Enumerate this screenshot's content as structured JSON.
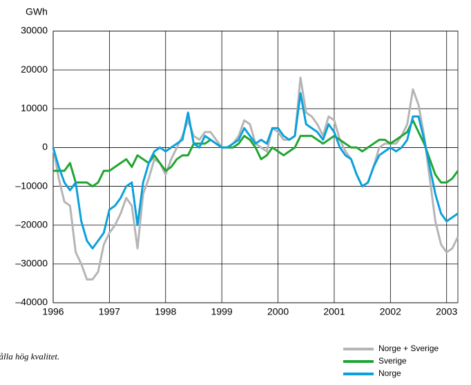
{
  "chart_data": {
    "type": "line",
    "y_label": "GWh",
    "caption": "uålla hög kvalitet.",
    "xlim": [
      1996,
      2003.2
    ],
    "xticks": [
      1996,
      1997,
      1998,
      1999,
      2000,
      2001,
      2002,
      2003
    ],
    "ylim": [
      -40000,
      30000
    ],
    "yticks": [
      {
        "value": -40000,
        "label": "–40000"
      },
      {
        "value": -30000,
        "label": "–30000"
      },
      {
        "value": -20000,
        "label": "–20000"
      },
      {
        "value": -10000,
        "label": "–10000"
      },
      0,
      10000,
      20000,
      30000
    ],
    "grid": true,
    "legend": "bottom-right",
    "x": [
      1996.0,
      1996.1,
      1996.2,
      1996.3,
      1996.4,
      1996.5,
      1996.6,
      1996.7,
      1996.8,
      1996.9,
      1997.0,
      1997.1,
      1997.2,
      1997.3,
      1997.4,
      1997.5,
      1997.6,
      1997.7,
      1997.8,
      1997.9,
      1998.0,
      1998.1,
      1998.2,
      1998.3,
      1998.4,
      1998.5,
      1998.6,
      1998.7,
      1998.8,
      1998.9,
      1999.0,
      1999.1,
      1999.2,
      1999.3,
      1999.4,
      1999.5,
      1999.6,
      1999.7,
      1999.8,
      1999.9,
      2000.0,
      2000.1,
      2000.2,
      2000.3,
      2000.4,
      2000.5,
      2000.6,
      2000.7,
      2000.8,
      2000.9,
      2001.0,
      2001.1,
      2001.2,
      2001.3,
      2001.4,
      2001.5,
      2001.6,
      2001.7,
      2001.8,
      2001.9,
      2002.0,
      2002.1,
      2002.2,
      2002.3,
      2002.4,
      2002.5,
      2002.6,
      2002.7,
      2002.8,
      2002.9,
      2003.0,
      2003.1,
      2003.2
    ],
    "series": [
      {
        "name": "Norge + Sverige",
        "color": "#b5b5b5",
        "values": [
          0,
          -8000,
          -14000,
          -15000,
          -27000,
          -30000,
          -34000,
          -34000,
          -32000,
          -25000,
          -22000,
          -20000,
          -17000,
          -13000,
          -15000,
          -26000,
          -12000,
          -8000,
          -3000,
          -4000,
          -7000,
          -3000,
          0,
          3000,
          7000,
          3000,
          2000,
          4000,
          4000,
          2000,
          0,
          0,
          1000,
          3000,
          7000,
          6000,
          1000,
          0,
          -1000,
          5000,
          4000,
          2000,
          2000,
          3000,
          18000,
          9000,
          8000,
          6000,
          3000,
          8000,
          7000,
          2000,
          -1000,
          -3000,
          -7000,
          -10000,
          -9000,
          -5000,
          0,
          1000,
          1000,
          1000,
          3000,
          6000,
          15000,
          11000,
          3000,
          -8000,
          -19000,
          -25000,
          -27000,
          -26000,
          -23000
        ]
      },
      {
        "name": "Sverige",
        "color": "#1fa531",
        "values": [
          -6000,
          -6000,
          -6000,
          -4000,
          -9000,
          -9000,
          -9000,
          -10000,
          -9000,
          -6000,
          -6000,
          -5000,
          -4000,
          -3000,
          -5000,
          -2000,
          -3000,
          -4000,
          -2000,
          -4000,
          -6000,
          -5000,
          -3000,
          -2000,
          -2000,
          1000,
          1000,
          1000,
          2000,
          1000,
          0,
          0,
          0,
          1000,
          3000,
          2000,
          0,
          -3000,
          -2000,
          0,
          -1000,
          -2000,
          -1000,
          0,
          3000,
          3000,
          3000,
          2000,
          1000,
          2000,
          3000,
          2000,
          1000,
          0,
          0,
          -1000,
          0,
          1000,
          2000,
          2000,
          1000,
          2000,
          3000,
          4000,
          7000,
          4000,
          1000,
          -3000,
          -7000,
          -9000,
          -9000,
          -8000,
          -6000
        ]
      },
      {
        "name": "Norge",
        "color": "#0aa0dc",
        "values": [
          0,
          -5000,
          -9000,
          -11000,
          -9000,
          -19000,
          -24000,
          -26000,
          -24000,
          -22000,
          -16000,
          -15000,
          -13000,
          -10000,
          -9000,
          -20000,
          -9000,
          -4000,
          -1000,
          0,
          -1000,
          0,
          1000,
          2000,
          9000,
          1000,
          0,
          3000,
          2000,
          1000,
          0,
          0,
          1000,
          2000,
          5000,
          3000,
          1000,
          2000,
          1000,
          5000,
          5000,
          3000,
          2000,
          3000,
          14000,
          6000,
          5000,
          4000,
          2000,
          6000,
          4000,
          0,
          -2000,
          -3000,
          -7000,
          -10000,
          -9000,
          -5000,
          -2000,
          -1000,
          0,
          -1000,
          0,
          2000,
          8000,
          8000,
          2000,
          -5000,
          -12000,
          -17000,
          -19000,
          -18000,
          -17000
        ]
      }
    ]
  }
}
